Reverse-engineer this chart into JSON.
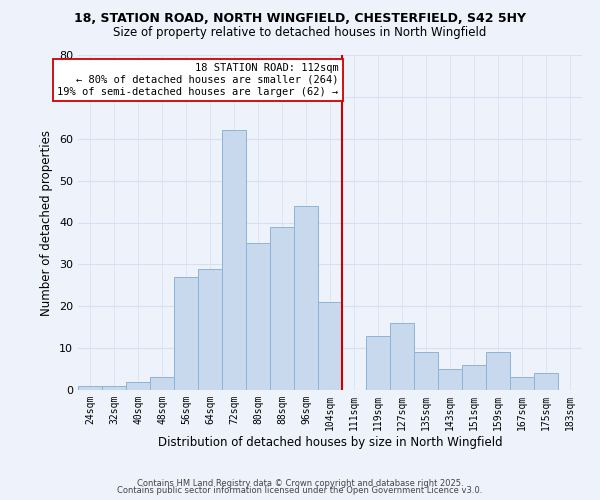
{
  "title1": "18, STATION ROAD, NORTH WINGFIELD, CHESTERFIELD, S42 5HY",
  "title2": "Size of property relative to detached houses in North Wingfield",
  "xlabel": "Distribution of detached houses by size in North Wingfield",
  "ylabel": "Number of detached properties",
  "bin_labels": [
    "24sqm",
    "32sqm",
    "40sqm",
    "48sqm",
    "56sqm",
    "64sqm",
    "72sqm",
    "80sqm",
    "88sqm",
    "96sqm",
    "104sqm",
    "111sqm",
    "119sqm",
    "127sqm",
    "135sqm",
    "143sqm",
    "151sqm",
    "159sqm",
    "167sqm",
    "175sqm",
    "183sqm"
  ],
  "bar_values": [
    1,
    1,
    2,
    3,
    27,
    29,
    62,
    35,
    39,
    44,
    21,
    0,
    13,
    16,
    9,
    5,
    6,
    9,
    3,
    4,
    0
  ],
  "bar_color": "#c8d9ee",
  "bar_edge_color": "#8ab4d8",
  "vline_x": 11,
  "vline_color": "#cc0000",
  "annotation_title": "18 STATION ROAD: 112sqm",
  "annotation_line1": "← 80% of detached houses are smaller (264)",
  "annotation_line2": "19% of semi-detached houses are larger (62) →",
  "ylim": [
    0,
    80
  ],
  "yticks": [
    0,
    10,
    20,
    30,
    40,
    50,
    60,
    70,
    80
  ],
  "footnote1": "Contains HM Land Registry data © Crown copyright and database right 2025.",
  "footnote2": "Contains public sector information licensed under the Open Government Licence v3.0.",
  "bg_color": "#eef2fb",
  "grid_color": "#d8dff0",
  "title_fontsize": 9,
  "subtitle_fontsize": 8.5
}
